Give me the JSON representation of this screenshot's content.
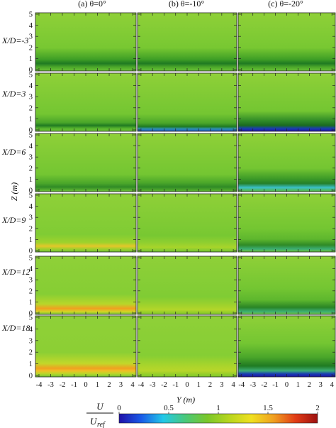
{
  "chart_data": {
    "type": "heatmap",
    "columns": [
      {
        "label": "(a) θ=0°"
      },
      {
        "label": "(b) θ=-10°"
      },
      {
        "label": "(c) θ=-20°"
      }
    ],
    "rows": [
      {
        "label": "X/D=-3"
      },
      {
        "label": "X/D=3"
      },
      {
        "label": "X/D=6"
      },
      {
        "label": "X/D=9"
      },
      {
        "label": "X/D=12"
      },
      {
        "label": "X/D=18"
      }
    ],
    "ylabel": "Z (m)",
    "xlabel": "Y (m)",
    "z_ticks": [
      "0",
      "1",
      "2",
      "3",
      "4",
      "5"
    ],
    "z_range": [
      0,
      5
    ],
    "y_ticks": [
      "-4",
      "-3",
      "-2",
      "-1",
      "0",
      "1",
      "2",
      "3",
      "4"
    ],
    "y_range": [
      -4.3,
      4.3
    ],
    "colorbar": {
      "numerator": "U",
      "denominator": "U",
      "denominator_sub": "ref",
      "ticks": [
        "0",
        "0.5",
        "1",
        "1.5",
        "2"
      ],
      "range": [
        0,
        2
      ],
      "colors": [
        "#1f10a8",
        "#1a5ae8",
        "#22c8e8",
        "#49c87a",
        "#7ac72a",
        "#b8d61e",
        "#f0e020",
        "#f0a020",
        "#e23c16",
        "#9c1010"
      ]
    },
    "field_description_values": {
      "free_stream": 1.0,
      "deficit_theta0_growth": [
        0.85,
        0.95,
        1.15,
        1.25,
        1.3
      ],
      "notes": "ratio of local to reference velocity"
    }
  }
}
